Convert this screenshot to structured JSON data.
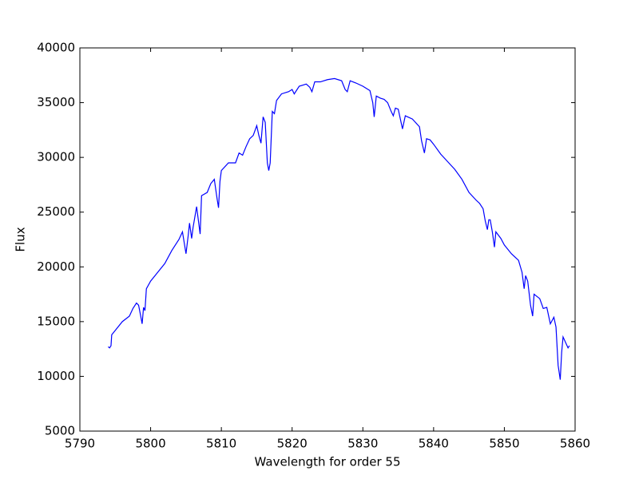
{
  "chart_data": {
    "type": "line",
    "xlabel": "Wavelength for order 55",
    "ylabel": "Flux",
    "xlim": [
      5790,
      5860
    ],
    "xticks": [
      5790,
      5800,
      5810,
      5820,
      5830,
      5840,
      5850,
      5860
    ],
    "ylim": [
      5000,
      40000
    ],
    "yticks": [
      5000,
      10000,
      15000,
      20000,
      25000,
      30000,
      35000,
      40000
    ],
    "grid": false,
    "x": [
      5794.0,
      5794.2,
      5794.4,
      5794.5,
      5795,
      5796,
      5797,
      5797.5,
      5798,
      5798.3,
      5798.6,
      5798.8,
      5799,
      5799.2,
      5799.4,
      5800,
      5801,
      5802,
      5803,
      5804,
      5804.5,
      5805,
      5805.3,
      5805.5,
      5805.8,
      5806,
      5806.5,
      5806.8,
      5807,
      5807.2,
      5808,
      5808.5,
      5809,
      5809.4,
      5809.6,
      5809.8,
      5810,
      5811,
      5812,
      5812.5,
      5813,
      5813.5,
      5814,
      5814.5,
      5815,
      5815.3,
      5815.6,
      5815.9,
      5816.2,
      5816.5,
      5816.7,
      5816.9,
      5817.2,
      5817.5,
      5817.8,
      5818.5,
      5819.5,
      5820,
      5820.3,
      5821,
      5822,
      5822.5,
      5822.8,
      5823.2,
      5824,
      5825,
      5826,
      5827,
      5827.5,
      5827.8,
      5828.2,
      5829,
      5830,
      5831,
      5831.4,
      5831.6,
      5831.9,
      5832.5,
      5833,
      5833.5,
      5834,
      5834.3,
      5834.6,
      5835,
      5835.4,
      5835.6,
      5836,
      5837,
      5838,
      5838.3,
      5838.7,
      5839,
      5839.5,
      5840,
      5841,
      5842,
      5843,
      5844,
      5845,
      5846,
      5846.5,
      5847,
      5847.3,
      5847.6,
      5847.8,
      5848,
      5848.3,
      5848.6,
      5848.8,
      5849.5,
      5850,
      5851,
      5852,
      5852.5,
      5852.8,
      5853,
      5853.3,
      5853.7,
      5854,
      5854.2,
      5855,
      5855.5,
      5856,
      5856.5,
      5857,
      5857.3,
      5857.6,
      5857.9,
      5858.1,
      5858.3,
      5859,
      5859.2
    ],
    "series": [
      {
        "color": "#0000ff",
        "values": [
          12700,
          12600,
          12800,
          13800,
          14200,
          15000,
          15500,
          16200,
          16700,
          16500,
          15500,
          14800,
          16300,
          16000,
          18000,
          18700,
          19500,
          20300,
          21500,
          22500,
          23200,
          21200,
          22800,
          24000,
          22600,
          23600,
          25500,
          24000,
          23000,
          26500,
          26800,
          27600,
          28000,
          26200,
          25400,
          27800,
          28800,
          29500,
          29500,
          30400,
          30200,
          31000,
          31700,
          32000,
          32900,
          32000,
          31300,
          33700,
          33200,
          29500,
          28800,
          29500,
          34200,
          34000,
          35200,
          35800,
          36000,
          36200,
          35800,
          36500,
          36700,
          36400,
          36000,
          36900,
          36900,
          37100,
          37200,
          37000,
          36200,
          36000,
          37000,
          36800,
          36500,
          36100,
          35000,
          33700,
          35600,
          35400,
          35300,
          35000,
          34200,
          33800,
          34500,
          34400,
          33200,
          32600,
          33800,
          33500,
          32800,
          31500,
          30400,
          31700,
          31600,
          31200,
          30300,
          29600,
          28900,
          28000,
          26800,
          26100,
          25800,
          25300,
          24200,
          23400,
          24300,
          24300,
          23200,
          21800,
          23200,
          22600,
          22000,
          21200,
          20600,
          19500,
          18000,
          19200,
          18700,
          16500,
          15500,
          17500,
          17100,
          16200,
          16300,
          14800,
          15400,
          14500,
          11000,
          9700,
          12200,
          13600,
          12600,
          12800
        ]
      }
    ]
  }
}
